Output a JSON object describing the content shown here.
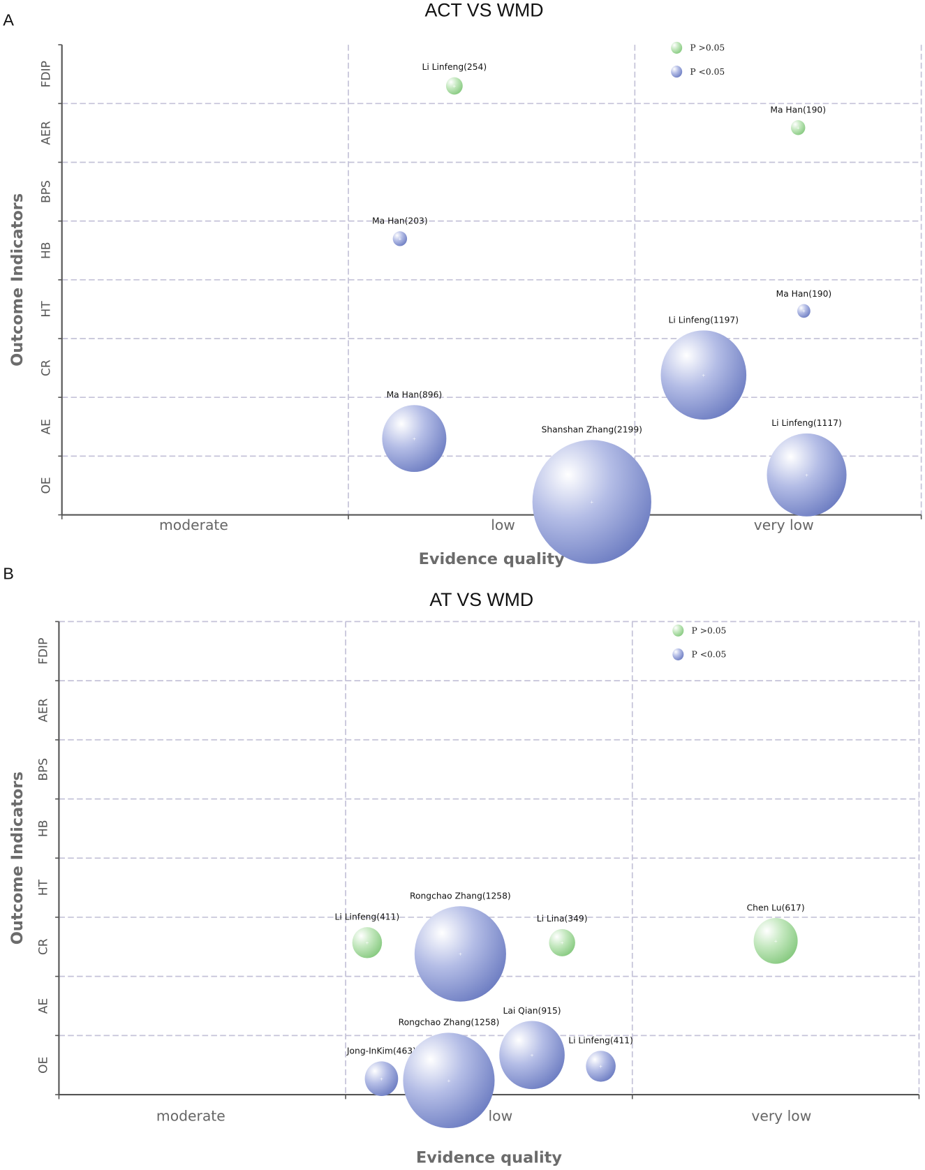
{
  "chart_data": [
    {
      "panel_label": "A",
      "type": "scatter",
      "subtype": "bubble",
      "title": "ACT VS WMD",
      "xlabel": "Evidence quality",
      "ylabel": "Outcome Indicators",
      "x_categories": [
        "moderate",
        "low",
        "very low"
      ],
      "y_categories": [
        "OE",
        "AE",
        "CR",
        "HT",
        "HB",
        "BPS",
        "AER",
        "FDIP"
      ],
      "grid": true,
      "legend": {
        "position": "top-right",
        "entries": [
          {
            "label": "P >0.05",
            "color": "#8fd08a"
          },
          {
            "label": "P <0.05",
            "color": "#6f7fc4"
          }
        ]
      },
      "points": [
        {
          "label": "Li Linfeng(254)",
          "x": 1.37,
          "y": 6.8,
          "size": 0.14,
          "group": "P >0.05"
        },
        {
          "label": "Ma Han(190)",
          "x": 2.57,
          "y": 6.09,
          "size": 0.12,
          "group": "P >0.05"
        },
        {
          "label": "Ma Han(203)",
          "x": 1.18,
          "y": 4.2,
          "size": 0.12,
          "group": "P <0.05"
        },
        {
          "label": "Ma Han(190)",
          "x": 2.59,
          "y": 2.97,
          "size": 0.11,
          "group": "P <0.05"
        },
        {
          "label": "Li Linfeng(1197)",
          "x": 2.24,
          "y": 1.88,
          "size": 0.72,
          "group": "P <0.05"
        },
        {
          "label": "Ma Han(896)",
          "x": 1.23,
          "y": 0.8,
          "size": 0.54,
          "group": "P <0.05"
        },
        {
          "label": "Shanshan Zhang(2199)",
          "x": 1.85,
          "y": -0.28,
          "size": 1.0,
          "group": "P <0.05"
        },
        {
          "label": "Li Linfeng(1117)",
          "x": 2.6,
          "y": 0.18,
          "size": 0.67,
          "group": "P <0.05"
        }
      ]
    },
    {
      "panel_label": "B",
      "type": "scatter",
      "subtype": "bubble",
      "title": "AT VS WMD",
      "xlabel": "Evidence quality",
      "ylabel": "Outcome Indicators",
      "x_categories": [
        "moderate",
        "low",
        "very low"
      ],
      "y_categories": [
        "OE",
        "AE",
        "CR",
        "HT",
        "HB",
        "BPS",
        "AER",
        "FDIP"
      ],
      "grid": true,
      "legend": {
        "position": "top-right",
        "entries": [
          {
            "label": "P >0.05",
            "color": "#8fd08a"
          },
          {
            "label": "P <0.05",
            "color": "#6f7fc4"
          }
        ]
      },
      "points": [
        {
          "label": "Li Linfeng(411)",
          "x": 1.075,
          "y": 2.07,
          "size": 0.25,
          "group": "P >0.05"
        },
        {
          "label": "Rongchao Zhang(1258)",
          "x": 1.4,
          "y": 1.88,
          "size": 0.77,
          "group": "P <0.05"
        },
        {
          "label": "Li Lina(349)",
          "x": 1.755,
          "y": 2.07,
          "size": 0.22,
          "group": "P >0.05"
        },
        {
          "label": "Chen Lu(617)",
          "x": 2.5,
          "y": 2.1,
          "size": 0.37,
          "group": "P >0.05"
        },
        {
          "label": "Jong-InKim(463)",
          "x": 1.125,
          "y": -0.23,
          "size": 0.28,
          "group": "P <0.05"
        },
        {
          "label": "Rongchao Zhang(1258)",
          "x": 1.36,
          "y": -0.26,
          "size": 0.77,
          "group": "P <0.05"
        },
        {
          "label": "Lai Qian(915)",
          "x": 1.65,
          "y": 0.17,
          "size": 0.55,
          "group": "P <0.05"
        },
        {
          "label": "Li Linfeng(411)",
          "x": 1.89,
          "y": -0.02,
          "size": 0.25,
          "group": "P <0.05"
        }
      ]
    }
  ]
}
